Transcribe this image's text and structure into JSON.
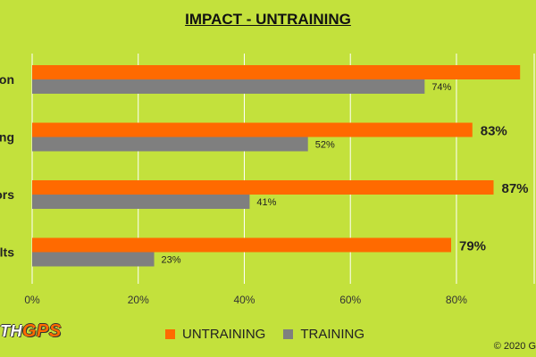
{
  "chart_data": {
    "type": "bar",
    "orientation": "horizontal",
    "title": "IMPACT - UNTRAINING",
    "categories": [
      "on",
      "ng",
      "ors",
      "lts"
    ],
    "series": [
      {
        "name": "UNTRAINING",
        "color": "#ff6a00",
        "values": [
          92,
          83,
          87,
          79
        ],
        "labels": [
          "",
          "83%",
          "87%",
          "79%"
        ]
      },
      {
        "name": "TRAINING",
        "color": "#7f7f7f",
        "values": [
          74,
          52,
          41,
          23
        ],
        "labels": [
          "74%",
          "52%",
          "41%",
          "23%"
        ]
      }
    ],
    "xlim": [
      0,
      95
    ],
    "x_ticks": [
      "0%",
      "20%",
      "40%",
      "60%",
      "80%"
    ],
    "x_tick_values": [
      0,
      20,
      40,
      60,
      80
    ],
    "grid": true,
    "legend_position": "bottom"
  },
  "logo": {
    "text_a": "TH",
    "text_b": "GPS"
  },
  "copyright": "© 2020 G"
}
